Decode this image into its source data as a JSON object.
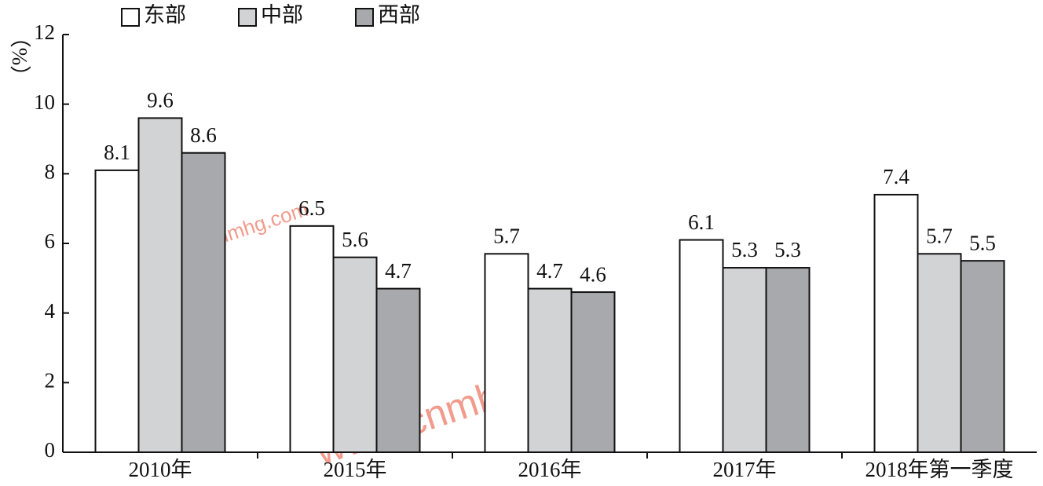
{
  "chart_data": {
    "type": "bar",
    "y_label": "（%）",
    "categories": [
      "2010年",
      "2015年",
      "2016年",
      "2017年",
      "2018年第一季度"
    ],
    "series": [
      {
        "name": "东部",
        "color": "#ffffff",
        "values": [
          8.1,
          6.5,
          5.7,
          6.1,
          7.4
        ]
      },
      {
        "name": "中部",
        "color": "#d2d3d5",
        "values": [
          9.6,
          5.6,
          4.7,
          5.3,
          5.7
        ]
      },
      {
        "name": "西部",
        "color": "#a8a9ac",
        "values": [
          8.6,
          4.7,
          4.6,
          5.3,
          5.5
        ]
      }
    ],
    "ylim": [
      0,
      12
    ],
    "yticks": [
      0,
      2,
      4,
      6,
      8,
      10,
      12
    ],
    "watermarks": [
      "www.cnmhg.com",
      "www.cnmhg.com"
    ]
  }
}
